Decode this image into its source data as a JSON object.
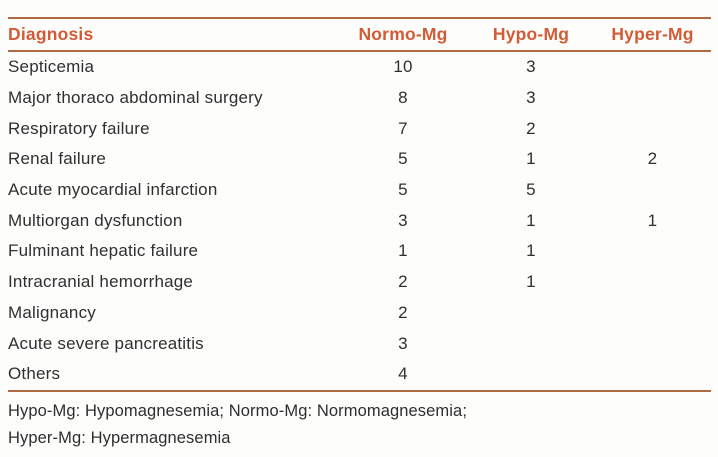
{
  "colors": {
    "accent_header_text": "#d15c35",
    "rule_line": "#b06a42",
    "body_text": "#303030",
    "background": "#fdfdfc"
  },
  "chart_data": {
    "type": "table",
    "columns": [
      "Diagnosis",
      "Normo-Mg",
      "Hypo-Mg",
      "Hyper-Mg"
    ],
    "rows": [
      [
        "Septicemia",
        "10",
        "3",
        ""
      ],
      [
        "Major thoraco abdominal surgery",
        "8",
        "3",
        ""
      ],
      [
        "Respiratory failure",
        "7",
        "2",
        ""
      ],
      [
        "Renal failure",
        "5",
        "1",
        "2"
      ],
      [
        "Acute myocardial infarction",
        "5",
        "5",
        ""
      ],
      [
        "Multiorgan dysfunction",
        "3",
        "1",
        "1"
      ],
      [
        "Fulminant hepatic failure",
        "1",
        "1",
        ""
      ],
      [
        "Intracranial hemorrhage",
        "2",
        "1",
        ""
      ],
      [
        "Malignancy",
        "2",
        "",
        ""
      ],
      [
        "Acute severe pancreatitis",
        "3",
        "",
        ""
      ],
      [
        "Others",
        "4",
        "",
        ""
      ]
    ],
    "footnote": "Hypo-Mg: Hypomagnesemia; Normo-Mg: Normomagnesemia; Hyper-Mg: Hypermagnesemia",
    "layout": "grid on: none; header rules and bottom rule in orange-brown"
  }
}
